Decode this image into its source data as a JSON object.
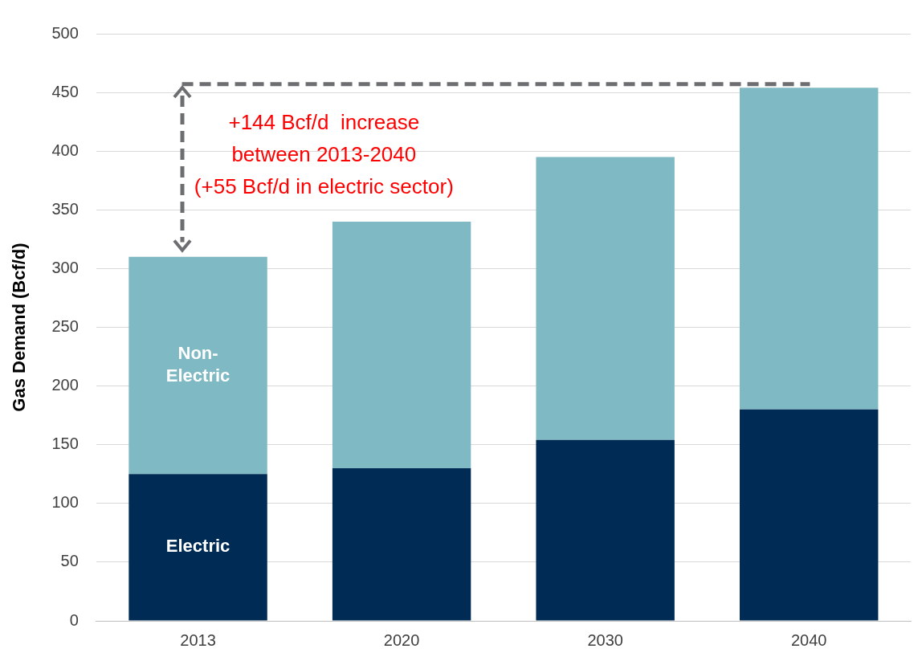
{
  "chart_data": {
    "type": "bar",
    "stacked": true,
    "ylabel": "Gas Demand (Bcf/d)",
    "categories": [
      "2013",
      "2020",
      "2030",
      "2040"
    ],
    "series": [
      {
        "name": "Electric",
        "color": "#002b55",
        "values": [
          125,
          130,
          154,
          180
        ]
      },
      {
        "name": "Non-Electric",
        "color": "#7fb9c3",
        "values": [
          185,
          210,
          241,
          274
        ]
      }
    ],
    "ref_lines": [
      {
        "axis": "y",
        "value": 457,
        "color": "#6d6e71",
        "line_style": "dashed"
      }
    ],
    "ylim": [
      0,
      500
    ],
    "yticks": [
      0,
      50,
      100,
      150,
      200,
      250,
      300,
      350,
      400,
      450,
      500
    ],
    "grid": "y",
    "legend": false,
    "annotations": [
      "+144 Bcf/d  increase",
      "between 2013-2040",
      "(+55 Bcf/d in electric sector)"
    ]
  }
}
